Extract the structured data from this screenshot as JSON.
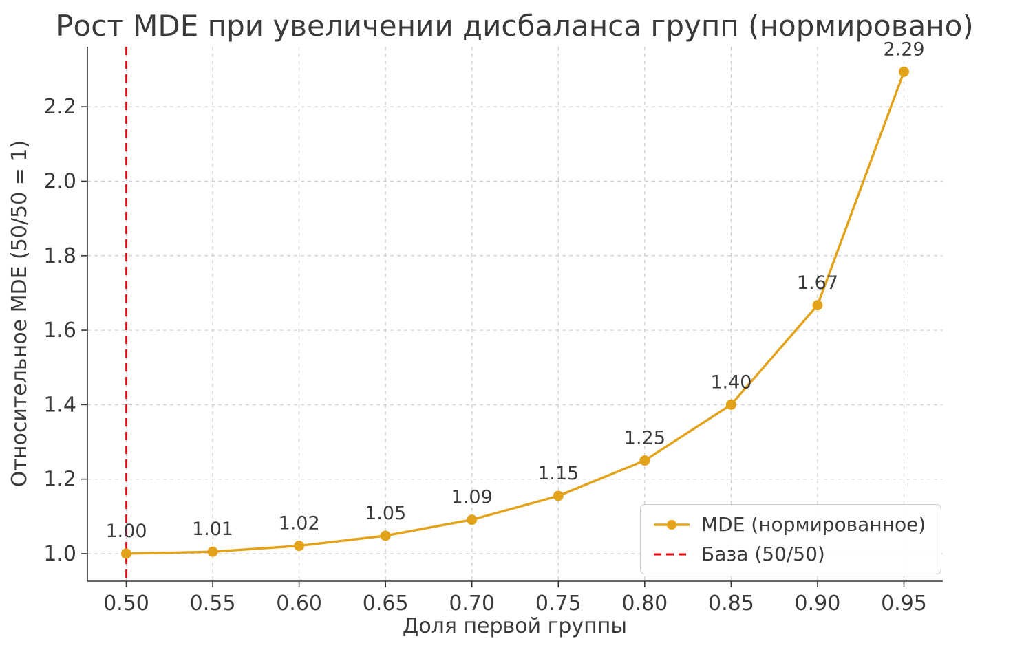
{
  "chart_data": {
    "type": "line",
    "title": "Рост MDE при увеличении дисбаланса групп (нормировано)",
    "xlabel": "Доля первой группы",
    "ylabel": "Относительное MDE (50/50 = 1)",
    "x": [
      0.5,
      0.55,
      0.6,
      0.65,
      0.7,
      0.75,
      0.8,
      0.85,
      0.9,
      0.95
    ],
    "series": [
      {
        "name": "MDE (нормированное)",
        "values": [
          1.0,
          1.005,
          1.021,
          1.048,
          1.091,
          1.155,
          1.25,
          1.4,
          1.667,
          2.294
        ],
        "color": "#E2A21A"
      }
    ],
    "point_labels": [
      "1.00",
      "1.01",
      "1.02",
      "1.05",
      "1.09",
      "1.15",
      "1.25",
      "1.40",
      "1.67",
      "2.29"
    ],
    "baseline": {
      "label": "База (50/50)",
      "x": 0.5,
      "color": "#E8000B",
      "style": "dashed"
    },
    "x_tick_labels": [
      "0.50",
      "0.55",
      "0.60",
      "0.65",
      "0.70",
      "0.75",
      "0.80",
      "0.85",
      "0.90",
      "0.95"
    ],
    "y_ticks": [
      1.0,
      1.2,
      1.4,
      1.6,
      1.8,
      2.0,
      2.2
    ],
    "y_tick_labels": [
      "1.0",
      "1.2",
      "1.4",
      "1.6",
      "1.8",
      "2.0",
      "2.2"
    ],
    "xlim": [
      0.4775,
      0.9725
    ],
    "ylim": [
      0.926,
      2.361
    ],
    "grid": true,
    "legend_position": "lower right"
  },
  "style": {
    "text_color": "#3a3a3a",
    "grid_color": "#cccccc",
    "spine_color": "#333333",
    "background": "#ffffff"
  }
}
